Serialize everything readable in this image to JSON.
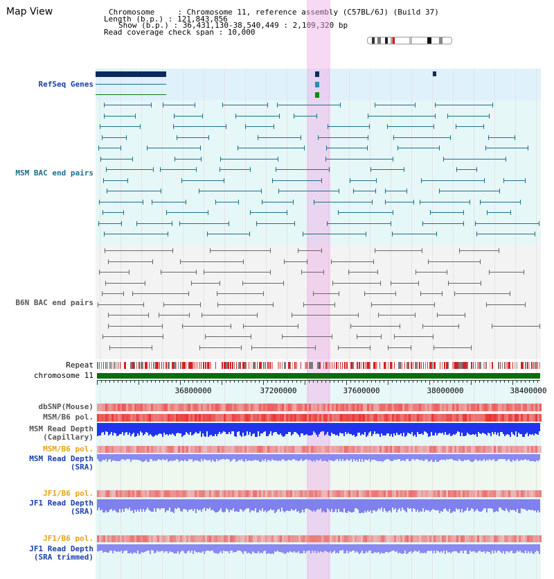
{
  "title": "Map View",
  "info": {
    "chromosome": "Chromosome     : Chromosome 11, reference assembly (C57BL/6J) (Build 37)",
    "length": "Length (b.p.) : 121,843,856",
    "show": "Show (b.p.) : 36,431,130-38,540,449 : 2,109,320 bp",
    "coverage": "Read coverage check span : 10,000"
  },
  "tracks": {
    "refseq": "RefSeq Genes",
    "msm_bac": "MSM BAC end pairs",
    "b6n_bac": "B6N BAC end pairs",
    "repeat": "Repeat",
    "chromosome": "chromosome 11",
    "dbsnp": "dbSNP(Mouse)",
    "msm_b6_pol": "MSM/B6 pol.",
    "msm_read_depth_cap": "MSM Read Depth\n(Capillary)",
    "msm_b6_pol_sra": "MSM/B6 pol.",
    "msm_read_depth_sra": "MSM Read Depth\n(SRA)",
    "jf1_b6_pol": "JF1/B6 pol.",
    "jf1_read_depth_sra": "JF1 Read Depth\n(SRA)",
    "jf1_b6_pol_trim": "JF1/B6 pol.",
    "jf1_read_depth_trim": "JF1 Read Depth\n(SRA trimmed)"
  },
  "axis": {
    "ticks": [
      "36800000",
      "37200000",
      "37600000",
      "38000000",
      "38400000"
    ]
  },
  "colors": {
    "refseq_bg": "#dff1fb",
    "bac_bg": "#e6f7f7",
    "msm_pair": "#1a6e8a",
    "b6n_pair": "#666666",
    "chromosome": "#0a6e0a",
    "depth_cap": "#2233ee",
    "depth_sra": "#8a8af0",
    "highlight": "#f4c8f0"
  }
}
